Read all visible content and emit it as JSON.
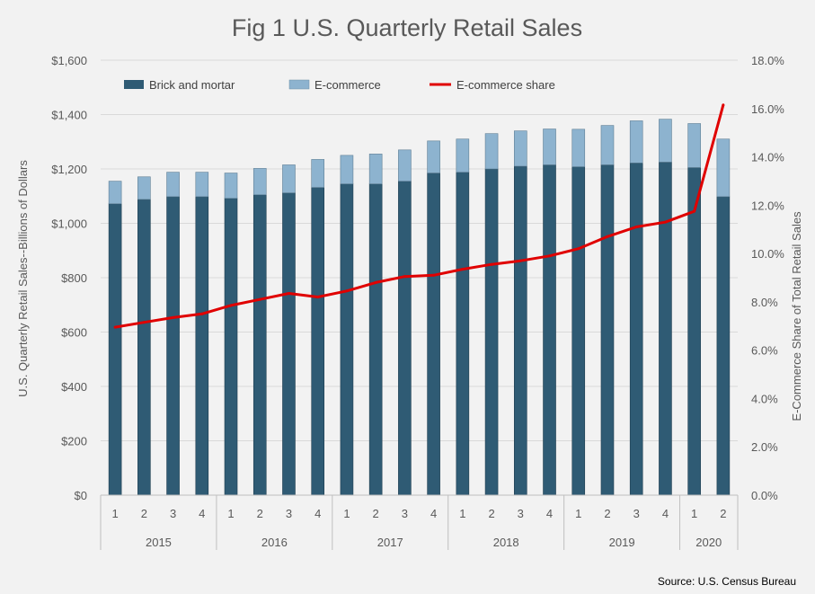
{
  "chart_data": {
    "type": "bar",
    "title": "Fig 1 U.S.  Quarterly Retail Sales",
    "ylabel": "U.S. Quarterly Retail Sales--Billions of Dollars",
    "y2label": "E-Commerce Share of Total Retail Sales",
    "ylim": [
      0,
      1600
    ],
    "y2lim": [
      0,
      18
    ],
    "yticks": [
      "$0",
      "$200",
      "$400",
      "$600",
      "$800",
      "$1,000",
      "$1,200",
      "$1,400",
      "$1,600"
    ],
    "y2ticks": [
      "0.0%",
      "2.0%",
      "4.0%",
      "6.0%",
      "8.0%",
      "10.0%",
      "12.0%",
      "14.0%",
      "16.0%",
      "18.0%"
    ],
    "categories": [
      "1",
      "2",
      "3",
      "4",
      "1",
      "2",
      "3",
      "4",
      "1",
      "2",
      "3",
      "4",
      "1",
      "2",
      "3",
      "4",
      "1",
      "2",
      "3",
      "4",
      "1",
      "2"
    ],
    "years": [
      {
        "label": "2015",
        "quarters": 4
      },
      {
        "label": "2016",
        "quarters": 4
      },
      {
        "label": "2017",
        "quarters": 4
      },
      {
        "label": "2018",
        "quarters": 4
      },
      {
        "label": "2019",
        "quarters": 4
      },
      {
        "label": "2020",
        "quarters": 2
      }
    ],
    "series": [
      {
        "name": "Brick and mortar",
        "kind": "bar",
        "color": "#2f5b74",
        "values": [
          1072,
          1088,
          1098,
          1098,
          1092,
          1105,
          1112,
          1132,
          1145,
          1145,
          1155,
          1185,
          1188,
          1200,
          1210,
          1215,
          1208,
          1215,
          1222,
          1225,
          1205,
          1098
        ]
      },
      {
        "name": "E-commerce",
        "kind": "bar",
        "color": "#8db3cf",
        "values": [
          83,
          83,
          90,
          90,
          93,
          97,
          103,
          103,
          105,
          110,
          115,
          118,
          122,
          130,
          130,
          132,
          138,
          145,
          155,
          158,
          162,
          212
        ]
      },
      {
        "name": "E-commerce share",
        "kind": "line",
        "axis": "right",
        "color": "#e00000",
        "values": [
          6.95,
          7.15,
          7.35,
          7.5,
          7.85,
          8.1,
          8.35,
          8.2,
          8.45,
          8.8,
          9.05,
          9.1,
          9.35,
          9.55,
          9.7,
          9.9,
          10.2,
          10.7,
          11.1,
          11.3,
          11.75,
          16.15
        ]
      }
    ],
    "legend": "top-left",
    "source": "Source: U.S. Census Bureau"
  }
}
